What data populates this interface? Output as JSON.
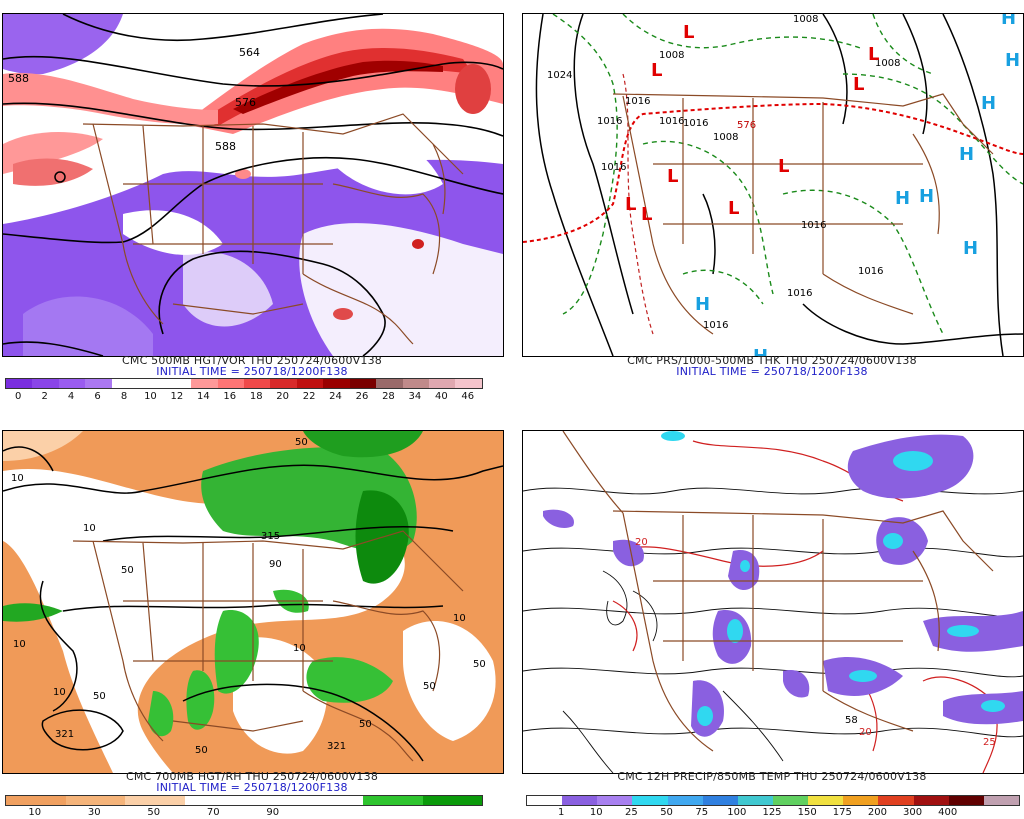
{
  "panels": {
    "p500": {
      "title": "CMC 500MB HGT/VOR THU 250724/0600V138",
      "subtitle": "INITIAL TIME = 250718/1200F138",
      "colorbar": {
        "colors": [
          "#7a2ee0",
          "#8a45e8",
          "#9a5cf0",
          "#ab78f2",
          "#ffffff",
          "#ffffff",
          "#ffffff",
          "#ff9999",
          "#ff7575",
          "#f04a4a",
          "#d82a2a",
          "#c01010",
          "#9a0000",
          "#7a0000",
          "#9a6a6a",
          "#c08a8a",
          "#e0a8b0",
          "#f4c4cc"
        ],
        "labels": [
          "0",
          "2",
          "4",
          "6",
          "8",
          "10",
          "12",
          "14",
          "16",
          "18",
          "20",
          "22",
          "24",
          "26",
          "28",
          "34",
          "40",
          "46"
        ]
      },
      "map_labels": [
        "564",
        "588",
        "576",
        "588"
      ]
    },
    "pprs": {
      "title": "CMC PRS/1000-500MB THK THU 250724/0600V138",
      "subtitle": "INITIAL TIME = 250718/1200F138",
      "map_labels": [
        "1008",
        "1024",
        "1008",
        "1016",
        "1016",
        "1016",
        "1016",
        "1008",
        "1016",
        "1016",
        "1016",
        "1016",
        "1016",
        "576",
        "1008"
      ],
      "highs": [
        "H",
        "H",
        "H",
        "H",
        "H",
        "H",
        "H",
        "H"
      ],
      "lows": [
        "L",
        "L",
        "L",
        "L",
        "L",
        "L",
        "L",
        "L",
        "L"
      ]
    },
    "p700": {
      "title": "CMC 700MB HGT/RH THU 250724/0600V138",
      "subtitle": "INITIAL TIME = 250718/1200F138",
      "colorbar": {
        "colors": [
          "#f0a060",
          "#f5b47a",
          "#fbd0a8",
          "#ffffff",
          "#ffffff",
          "#ffffff",
          "#2ec42e",
          "#0a9a0a"
        ],
        "labels": [
          "10",
          "30",
          "50",
          "70",
          "90"
        ]
      },
      "map_labels": [
        "50",
        "10",
        "50",
        "10",
        "315",
        "10",
        "90",
        "50",
        "10",
        "321",
        "50",
        "321",
        "50",
        "10",
        "50",
        "10",
        "50"
      ]
    },
    "pprecip": {
      "title": "CMC 12H PRECIP/850MB TEMP THU 250724/0600V138",
      "colorbar": {
        "colors": [
          "#ffffff",
          "#8a60e0",
          "#a880f0",
          "#30d8f0",
          "#40a8f0",
          "#3080e0",
          "#40c8d0",
          "#60d060",
          "#f0e040",
          "#f0a020",
          "#e04020",
          "#a01010",
          "#600000",
          "#c0a0b0"
        ],
        "labels": [
          "1",
          "10",
          "25",
          "50",
          "75",
          "100",
          "125",
          "150",
          "175",
          "200",
          "300",
          "400"
        ]
      },
      "map_labels": [
        "58",
        "20",
        "20",
        "25"
      ]
    }
  }
}
